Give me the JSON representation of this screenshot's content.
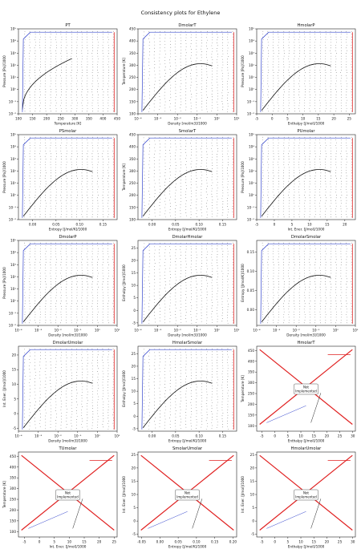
{
  "figure": {
    "suptitle": "Consistency plots for Ethylene"
  },
  "chart_data": [
    {
      "title": "PT",
      "type": "scatter",
      "xlabel": "Temperature [K]",
      "ylabel": "Pressure [Pa]/1000",
      "x_ticks": [
        "100",
        "150",
        "200",
        "250",
        "300",
        "350",
        "400",
        "450"
      ],
      "y_ticks": [
        "10⁻²",
        "10⁻¹",
        "10⁰",
        "10¹",
        "10²",
        "10³",
        "10⁴",
        "10⁵"
      ],
      "xlim": [
        100,
        450
      ],
      "yscale": "log",
      "ylim": [
        -2,
        5
      ],
      "not_implemented": false
    },
    {
      "title": "DmolarT",
      "type": "scatter",
      "xlabel": "Density [mol/m3]/1000",
      "ylabel": "Temperature [K]",
      "x_ticks": [
        "10⁻⁴",
        "10⁻³",
        "10⁻²",
        "10⁻¹",
        "10⁰",
        "10¹"
      ],
      "y_ticks": [
        "100",
        "150",
        "200",
        "250",
        "300",
        "350",
        "400",
        "450"
      ],
      "xscale": "log",
      "xlim": [
        -4,
        1
      ],
      "ylim": [
        100,
        450
      ],
      "not_implemented": false
    },
    {
      "title": "HmolarP",
      "type": "scatter",
      "xlabel": "Enthalpy [J/mol]/1000",
      "ylabel": "Pressure [Pa]/1000",
      "x_ticks": [
        "-5",
        "0",
        "5",
        "10",
        "15",
        "20",
        "25"
      ],
      "y_ticks": [
        "10⁻²",
        "10⁻¹",
        "10⁰",
        "10¹",
        "10²",
        "10³",
        "10⁴",
        "10⁵"
      ],
      "xlim": [
        -5,
        27
      ],
      "yscale": "log",
      "ylim": [
        -2,
        5
      ],
      "not_implemented": false
    },
    {
      "title": "PSmolar",
      "type": "scatter",
      "xlabel": "Entropy [J/mol/K]/1000",
      "ylabel": "Pressure [Pa]/1000",
      "x_ticks": [
        "0.00",
        "0.05",
        "0.10",
        "0.15"
      ],
      "y_ticks": [
        "10⁻²",
        "10⁻¹",
        "10⁰",
        "10¹",
        "10²",
        "10³",
        "10⁴",
        "10⁵"
      ],
      "xlim": [
        -0.03,
        0.18
      ],
      "yscale": "log",
      "ylim": [
        -2,
        5
      ],
      "not_implemented": false
    },
    {
      "title": "SmolarT",
      "type": "scatter",
      "xlabel": "Entropy [J/mol/K]/1000",
      "ylabel": "Temperature [K]",
      "x_ticks": [
        "0.00",
        "0.05",
        "0.10",
        "0.15"
      ],
      "y_ticks": [
        "100",
        "150",
        "200",
        "250",
        "300",
        "350",
        "400",
        "450"
      ],
      "xlim": [
        -0.03,
        0.18
      ],
      "ylim": [
        100,
        450
      ],
      "not_implemented": false
    },
    {
      "title": "PUmolar",
      "type": "scatter",
      "xlabel": "Int. Ener. [J/mol]/1000",
      "ylabel": "Pressure [Pa]/1000",
      "x_ticks": [
        "-5",
        "0",
        "5",
        "10",
        "15",
        "20"
      ],
      "y_ticks": [
        "10⁻²",
        "10⁻¹",
        "10⁰",
        "10¹",
        "10²",
        "10³",
        "10⁴",
        "10⁵"
      ],
      "xlim": [
        -5,
        23
      ],
      "yscale": "log",
      "ylim": [
        -2,
        5
      ],
      "not_implemented": false
    },
    {
      "title": "DmolarP",
      "type": "scatter",
      "xlabel": "Density [mol/m3]/1000",
      "ylabel": "Pressure [Pa]/1000",
      "x_ticks": [
        "10⁻⁴",
        "10⁻³",
        "10⁻²",
        "10⁻¹",
        "10⁰",
        "10¹"
      ],
      "y_ticks": [
        "10⁻²",
        "10⁻¹",
        "10⁰",
        "10¹",
        "10²",
        "10³",
        "10⁴",
        "10⁵"
      ],
      "xscale": "log",
      "xlim": [
        -4,
        1
      ],
      "yscale": "log",
      "ylim": [
        -2,
        5
      ],
      "not_implemented": false
    },
    {
      "title": "DmolarHmolar",
      "type": "scatter",
      "xlabel": "Density [mol/m3]/1000",
      "ylabel": "Enthalpy [J/mol]/1000",
      "x_ticks": [
        "10⁻⁴",
        "10⁻³",
        "10⁻²",
        "10⁻¹",
        "10⁰",
        "10¹"
      ],
      "y_ticks": [
        "-5",
        "0",
        "5",
        "10",
        "15",
        "20",
        "25"
      ],
      "xscale": "log",
      "xlim": [
        -4,
        1
      ],
      "ylim": [
        -6,
        28
      ],
      "not_implemented": false
    },
    {
      "title": "DmolarSmolar",
      "type": "scatter",
      "xlabel": "Density [mol/m3]/1000",
      "ylabel": "Entropy [J/mol/K]/1000",
      "x_ticks": [
        "10⁻⁴",
        "10⁻³",
        "10⁻²",
        "10⁻¹",
        "10⁰",
        "10¹"
      ],
      "y_ticks": [
        "0.00",
        "0.05",
        "0.10",
        "0.15"
      ],
      "xscale": "log",
      "xlim": [
        -4,
        1
      ],
      "ylim": [
        -0.04,
        0.18
      ],
      "not_implemented": false
    },
    {
      "title": "DmolarUmolar",
      "type": "scatter",
      "xlabel": "Density [mol/m3]/1000",
      "ylabel": "Int. Ener. [J/mol]/1000",
      "x_ticks": [
        "10⁻⁴",
        "10⁻³",
        "10⁻²",
        "10⁻¹",
        "10⁰",
        "10¹"
      ],
      "y_ticks": [
        "-5",
        "0",
        "5",
        "10",
        "15",
        "20"
      ],
      "xscale": "log",
      "xlim": [
        -4,
        1
      ],
      "ylim": [
        -6,
        23
      ],
      "not_implemented": false
    },
    {
      "title": "HmolarSmolar",
      "type": "scatter",
      "xlabel": "Entropy [J/mol/K]/1000",
      "ylabel": "Enthalpy [J/mol]/1000",
      "x_ticks": [
        "0.00",
        "0.05",
        "0.10",
        "0.15"
      ],
      "y_ticks": [
        "-5",
        "0",
        "5",
        "10",
        "15",
        "20",
        "25"
      ],
      "xlim": [
        -0.03,
        0.18
      ],
      "ylim": [
        -6,
        28
      ],
      "not_implemented": false
    },
    {
      "title": "HmolarT",
      "type": "line",
      "xlabel": "Enthalpy [J/mol]/1000",
      "ylabel": "Temperature [K]",
      "x_ticks": [
        "-5",
        "0",
        "5",
        "10",
        "15",
        "20",
        "25",
        "30"
      ],
      "y_ticks": [
        "100",
        "150",
        "200",
        "250",
        "300",
        "350",
        "400",
        "450"
      ],
      "xlim": [
        -7,
        31
      ],
      "ylim": [
        75,
        470
      ],
      "not_implemented": true,
      "note": "Not\nImplemented"
    },
    {
      "title": "TUmolar",
      "type": "line",
      "xlabel": "Int. Ener. [J/mol]/1000",
      "ylabel": "Temperature [K]",
      "x_ticks": [
        "-5",
        "0",
        "5",
        "10",
        "15",
        "20",
        "25"
      ],
      "y_ticks": [
        "100",
        "150",
        "200",
        "250",
        "300",
        "350",
        "400",
        "450"
      ],
      "xlim": [
        -7,
        26
      ],
      "ylim": [
        75,
        470
      ],
      "not_implemented": true,
      "note": "Not\nImplemented"
    },
    {
      "title": "SmolarUmolar",
      "type": "line",
      "xlabel": "Entropy [J/mol/K]/1000",
      "ylabel": "Int. Ener. [J/mol]/1000",
      "x_ticks": [
        "-0.05",
        "0.00",
        "0.05",
        "0.10",
        "0.15",
        "0.20"
      ],
      "y_ticks": [
        "-5",
        "0",
        "5",
        "10",
        "15",
        "20",
        "25"
      ],
      "xlim": [
        -0.06,
        0.21
      ],
      "ylim": [
        -6,
        26
      ],
      "not_implemented": true,
      "note": "Not\nImplemented"
    },
    {
      "title": "HmolarUmolar",
      "type": "line",
      "xlabel": "Enthalpy [J/mol]/1000",
      "ylabel": "Int. Ener. [J/mol]/1000",
      "x_ticks": [
        "-5",
        "0",
        "5",
        "10",
        "15",
        "20",
        "25",
        "30"
      ],
      "y_ticks": [
        "-5",
        "0",
        "5",
        "10",
        "15",
        "20",
        "25"
      ],
      "xlim": [
        -7,
        31
      ],
      "ylim": [
        -6,
        26
      ],
      "not_implemented": true,
      "note": "Not\nImplemented"
    }
  ]
}
